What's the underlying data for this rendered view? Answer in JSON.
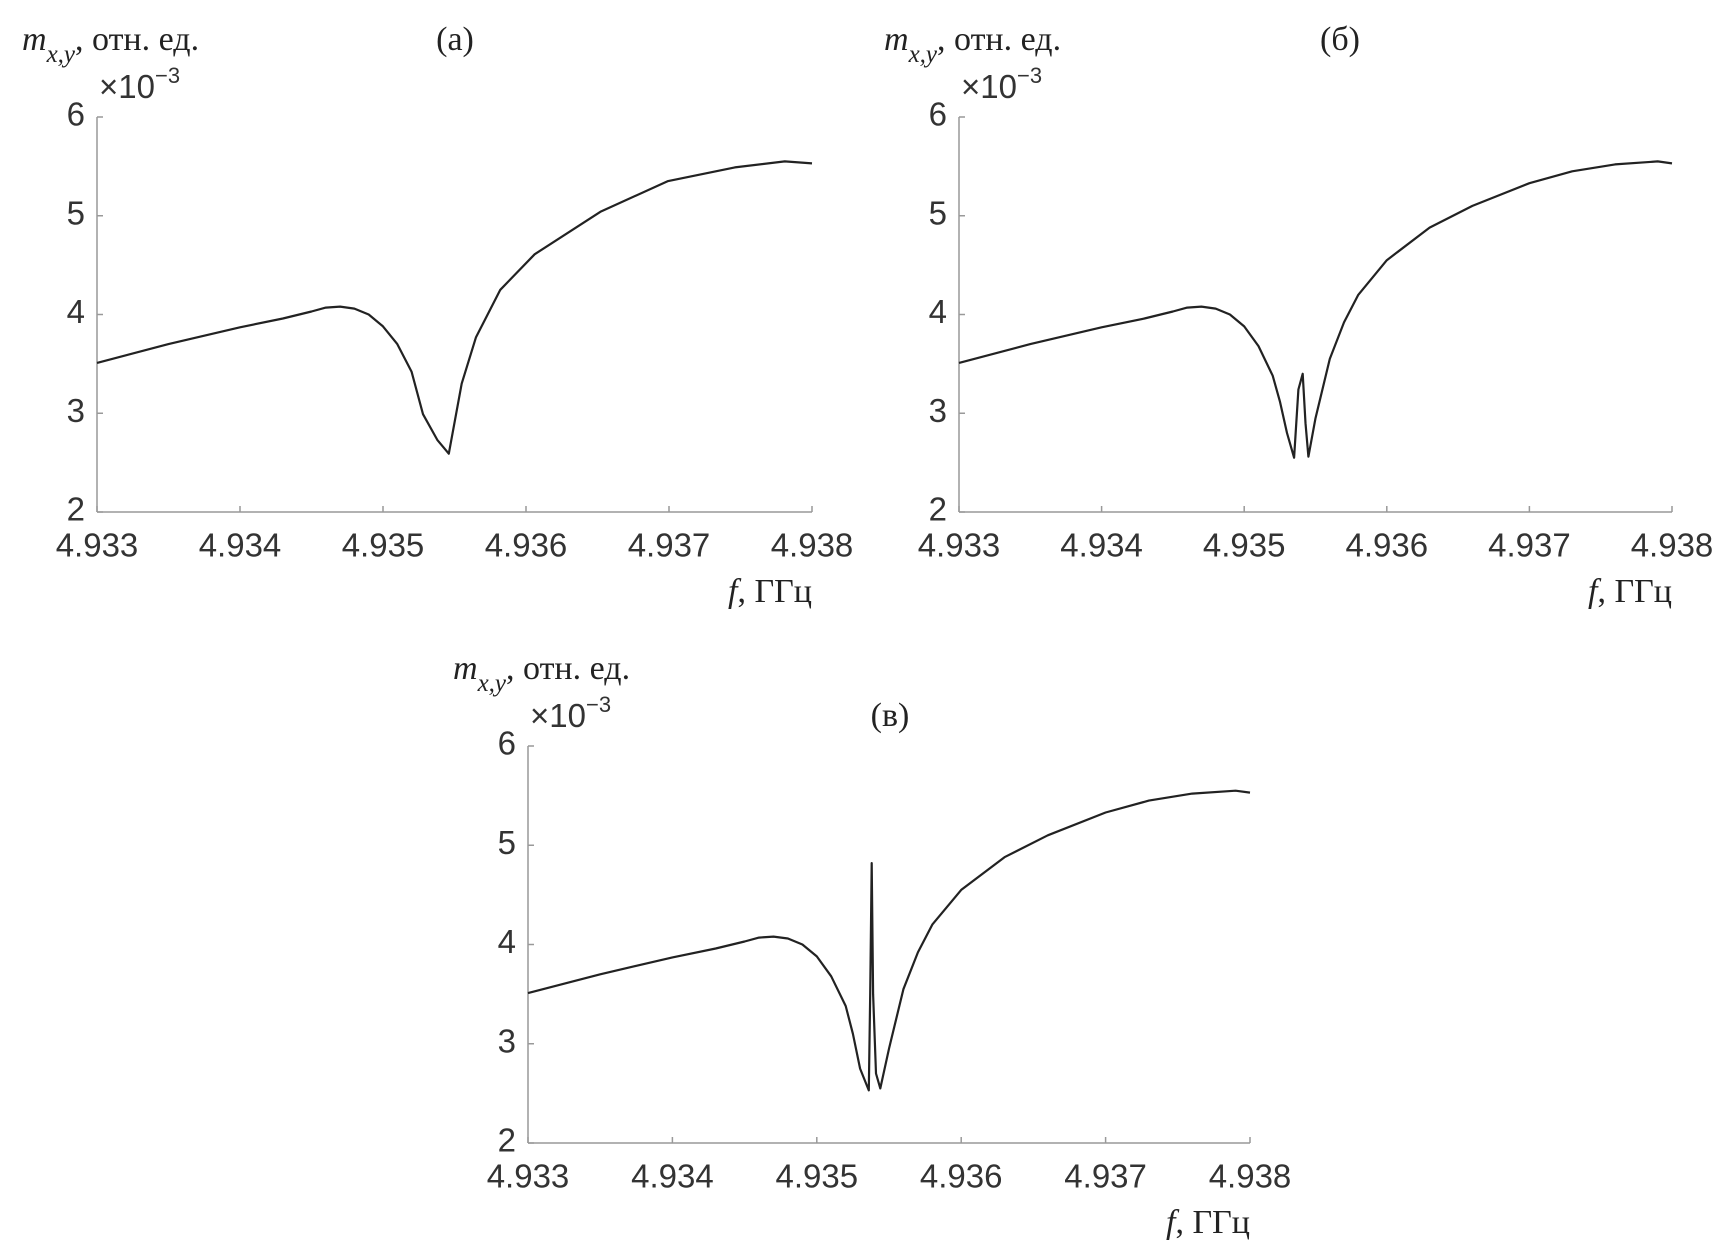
{
  "chart_data": [
    {
      "type": "line",
      "title": "(а)",
      "ylabel_main": "m",
      "ylabel_sub": "x,y",
      "ylabel_rest": ", отн. ед.",
      "y_scale_base": "×10",
      "y_scale_exponent": "−3",
      "xlabel_main": "f",
      "xlabel_rest": ", ГГц",
      "xlim": [
        4.933,
        4.938
      ],
      "xticks": [
        4.933,
        4.934,
        4.935,
        4.936,
        4.937,
        4.938
      ],
      "ylim": [
        2,
        6
      ],
      "yticks": [
        2,
        3,
        4,
        5,
        6
      ],
      "series": [
        {
          "color": "#222222",
          "x": [
            4.933,
            4.9335,
            4.934,
            4.9343,
            4.9345,
            4.9346,
            4.9347,
            4.9348,
            4.9349,
            4.935,
            4.9351,
            4.9352,
            4.93528,
            4.93538,
            4.93546,
            4.93555,
            4.93565,
            4.93582,
            4.93606,
            4.93652,
            4.93699,
            4.93746,
            4.93781,
            4.938
          ],
          "values": [
            3.51,
            3.7,
            3.87,
            3.96,
            4.03,
            4.07,
            4.08,
            4.06,
            4.0,
            3.88,
            3.7,
            3.42,
            2.99,
            2.73,
            2.59,
            3.3,
            3.77,
            4.25,
            4.61,
            5.04,
            5.35,
            5.49,
            5.55,
            5.53
          ]
        }
      ]
    },
    {
      "type": "line",
      "title": "(б)",
      "ylabel_main": "m",
      "ylabel_sub": "x,y",
      "ylabel_rest": ", отн. ед.",
      "y_scale_base": "×10",
      "y_scale_exponent": "−3",
      "xlabel_main": "f",
      "xlabel_rest": ", ГГц",
      "xlim": [
        4.933,
        4.938
      ],
      "xticks": [
        4.933,
        4.934,
        4.935,
        4.936,
        4.937,
        4.938
      ],
      "ylim": [
        2,
        6
      ],
      "yticks": [
        2,
        3,
        4,
        5,
        6
      ],
      "series": [
        {
          "color": "#222222",
          "x": [
            4.933,
            4.9335,
            4.934,
            4.9343,
            4.9345,
            4.9346,
            4.9347,
            4.9348,
            4.9349,
            4.935,
            4.9351,
            4.9352,
            4.93525,
            4.9353,
            4.93535,
            4.93538,
            4.93541,
            4.93543,
            4.93545,
            4.9355,
            4.9356,
            4.9357,
            4.9358,
            4.936,
            4.9363,
            4.9366,
            4.937,
            4.9373,
            4.9376,
            4.9379,
            4.938
          ],
          "values": [
            3.51,
            3.7,
            3.87,
            3.96,
            4.03,
            4.07,
            4.08,
            4.06,
            4.0,
            3.88,
            3.68,
            3.38,
            3.12,
            2.8,
            2.55,
            3.24,
            3.4,
            2.9,
            2.56,
            2.95,
            3.55,
            3.92,
            4.2,
            4.55,
            4.88,
            5.1,
            5.33,
            5.45,
            5.52,
            5.55,
            5.53
          ]
        }
      ]
    },
    {
      "type": "line",
      "title": "(в)",
      "ylabel_main": "m",
      "ylabel_sub": "x,y",
      "ylabel_rest": ", отн. ед.",
      "y_scale_base": "×10",
      "y_scale_exponent": "−3",
      "xlabel_main": "f",
      "xlabel_rest": ", ГГц",
      "xlim": [
        4.933,
        4.938
      ],
      "xticks": [
        4.933,
        4.934,
        4.935,
        4.936,
        4.937,
        4.938
      ],
      "ylim": [
        2,
        6
      ],
      "yticks": [
        2,
        3,
        4,
        5,
        6
      ],
      "series": [
        {
          "color": "#222222",
          "x": [
            4.933,
            4.9335,
            4.934,
            4.9343,
            4.9345,
            4.9346,
            4.9347,
            4.9348,
            4.9349,
            4.935,
            4.9351,
            4.9352,
            4.93525,
            4.9353,
            4.93536,
            4.93537,
            4.93538,
            4.93539,
            4.93541,
            4.93544,
            4.9355,
            4.9356,
            4.9357,
            4.9358,
            4.936,
            4.9363,
            4.9366,
            4.937,
            4.9373,
            4.9376,
            4.9379,
            4.938
          ],
          "values": [
            3.51,
            3.7,
            3.87,
            3.96,
            4.03,
            4.07,
            4.08,
            4.06,
            4.0,
            3.88,
            3.68,
            3.38,
            3.1,
            2.75,
            2.53,
            3.5,
            4.82,
            3.5,
            2.7,
            2.55,
            2.95,
            3.55,
            3.92,
            4.2,
            4.55,
            4.88,
            5.1,
            5.33,
            5.45,
            5.52,
            5.55,
            5.53
          ]
        }
      ]
    }
  ]
}
